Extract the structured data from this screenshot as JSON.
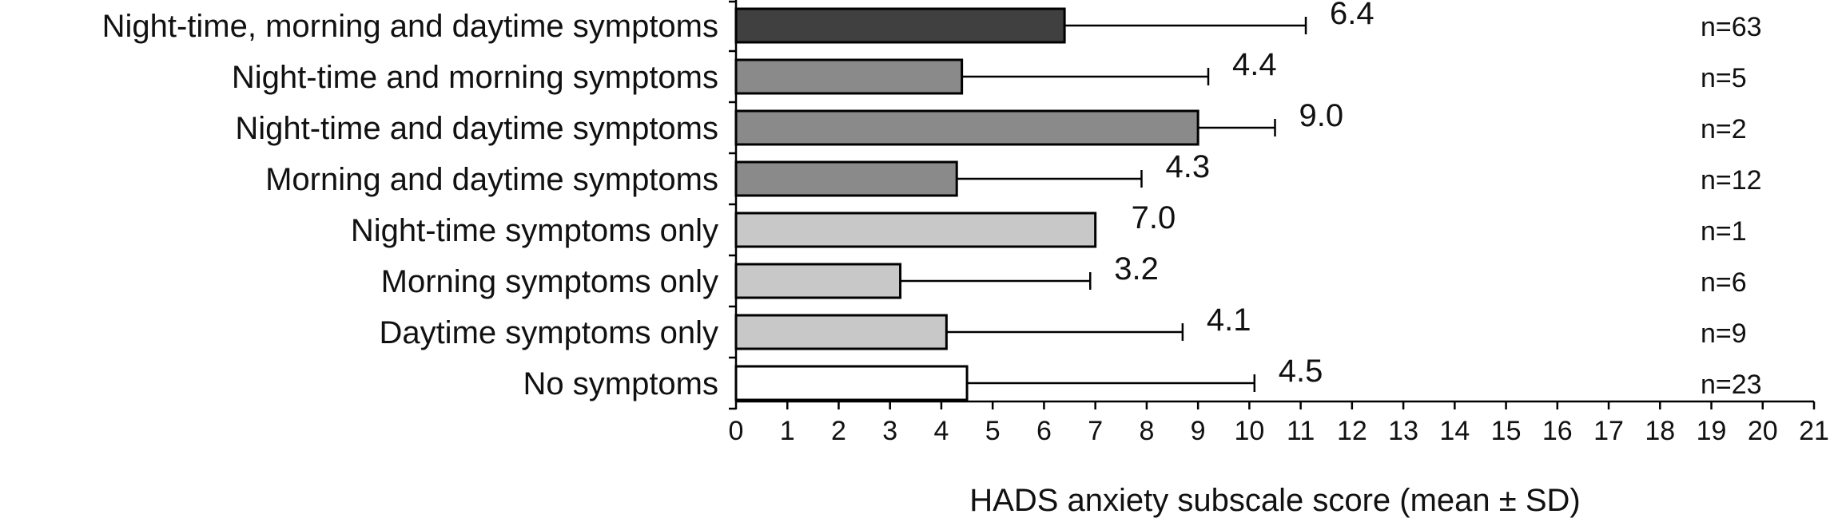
{
  "chart_data": {
    "type": "bar",
    "orientation": "horizontal",
    "title": "",
    "xlabel": "HADS anxiety subscale score (mean ± SD)",
    "ylabel": "",
    "xlim": [
      0,
      21
    ],
    "x_ticks": [
      0,
      1,
      2,
      3,
      4,
      5,
      6,
      7,
      8,
      9,
      10,
      11,
      12,
      13,
      14,
      15,
      16,
      17,
      18,
      19,
      20,
      21
    ],
    "grid": false,
    "legend": "none",
    "categories": [
      "Night-time, morning and daytime symptoms",
      "Night-time and morning symptoms",
      "Night-time and daytime symptoms",
      "Morning and daytime symptoms",
      "Night-time symptoms only",
      "Morning symptoms only",
      "Daytime symptoms only",
      "No symptoms"
    ],
    "values": [
      6.4,
      4.4,
      9.0,
      4.3,
      7.0,
      3.2,
      4.1,
      4.5
    ],
    "value_labels": [
      "6.4",
      "4.4",
      "9.0",
      "4.3",
      "7.0",
      "3.2",
      "4.1",
      "4.5"
    ],
    "sd": [
      4.7,
      4.8,
      1.5,
      3.6,
      0,
      3.7,
      4.6,
      5.6
    ],
    "n_labels": [
      "n=63",
      "n=5",
      "n=2",
      "n=12",
      "n=1",
      "n=6",
      "n=9",
      "n=23"
    ],
    "bar_colors": [
      "#404040",
      "#8a8a8a",
      "#8a8a8a",
      "#8a8a8a",
      "#c8c8c8",
      "#c8c8c8",
      "#c8c8c8",
      "#ffffff"
    ]
  }
}
